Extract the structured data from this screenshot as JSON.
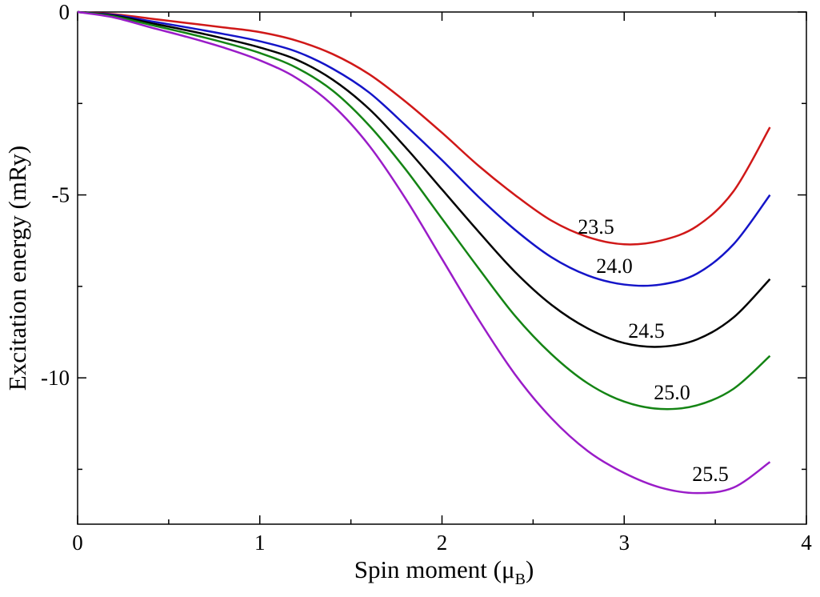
{
  "chart_data": {
    "type": "line",
    "x_label": [
      "Spin moment (μ",
      "B",
      ")"
    ],
    "y_label": "Excitation energy (mRy)",
    "x": [
      0,
      0.2,
      0.4,
      0.6,
      0.8,
      1.0,
      1.2,
      1.4,
      1.6,
      1.8,
      2.0,
      2.2,
      2.4,
      2.6,
      2.8,
      3.0,
      3.2,
      3.4,
      3.6,
      3.8
    ],
    "series": [
      {
        "name": "23.5",
        "color": "#d01818",
        "values": [
          0,
          -0.06,
          -0.18,
          -0.3,
          -0.42,
          -0.55,
          -0.78,
          -1.15,
          -1.7,
          -2.45,
          -3.3,
          -4.2,
          -5.0,
          -5.7,
          -6.15,
          -6.35,
          -6.25,
          -5.85,
          -4.9,
          -3.15
        ]
      },
      {
        "name": "24.0",
        "color": "#1414c8",
        "values": [
          0,
          -0.08,
          -0.25,
          -0.42,
          -0.6,
          -0.8,
          -1.08,
          -1.55,
          -2.2,
          -3.1,
          -4.05,
          -5.05,
          -5.95,
          -6.7,
          -7.2,
          -7.45,
          -7.45,
          -7.15,
          -6.35,
          -5.0
        ]
      },
      {
        "name": "24.5",
        "color": "#000000",
        "values": [
          0,
          -0.1,
          -0.3,
          -0.5,
          -0.72,
          -0.97,
          -1.3,
          -1.85,
          -2.65,
          -3.7,
          -4.85,
          -6.0,
          -7.1,
          -8.0,
          -8.65,
          -9.05,
          -9.15,
          -8.95,
          -8.35,
          -7.3
        ]
      },
      {
        "name": "25.0",
        "color": "#148414",
        "values": [
          0,
          -0.12,
          -0.35,
          -0.58,
          -0.83,
          -1.12,
          -1.52,
          -2.15,
          -3.1,
          -4.3,
          -5.65,
          -7.0,
          -8.3,
          -9.35,
          -10.15,
          -10.65,
          -10.85,
          -10.75,
          -10.3,
          -9.4
        ]
      },
      {
        "name": "25.5",
        "color": "#9a1cc8",
        "values": [
          0,
          -0.15,
          -0.42,
          -0.68,
          -0.97,
          -1.32,
          -1.8,
          -2.55,
          -3.65,
          -5.1,
          -6.75,
          -8.4,
          -9.9,
          -11.1,
          -12.0,
          -12.6,
          -13.0,
          -13.15,
          -13.0,
          -12.3
        ]
      }
    ],
    "xlim": [
      0,
      4
    ],
    "xticks": [
      0,
      1,
      2,
      3,
      4
    ],
    "xminorticks": [
      0.5,
      1.5,
      2.5,
      3.5
    ],
    "ylim": [
      -14,
      0
    ],
    "yticks": [
      0,
      -5,
      -10
    ],
    "yminorticks": [
      -2.5,
      -7.5,
      -12.5
    ],
    "grid": false
  }
}
